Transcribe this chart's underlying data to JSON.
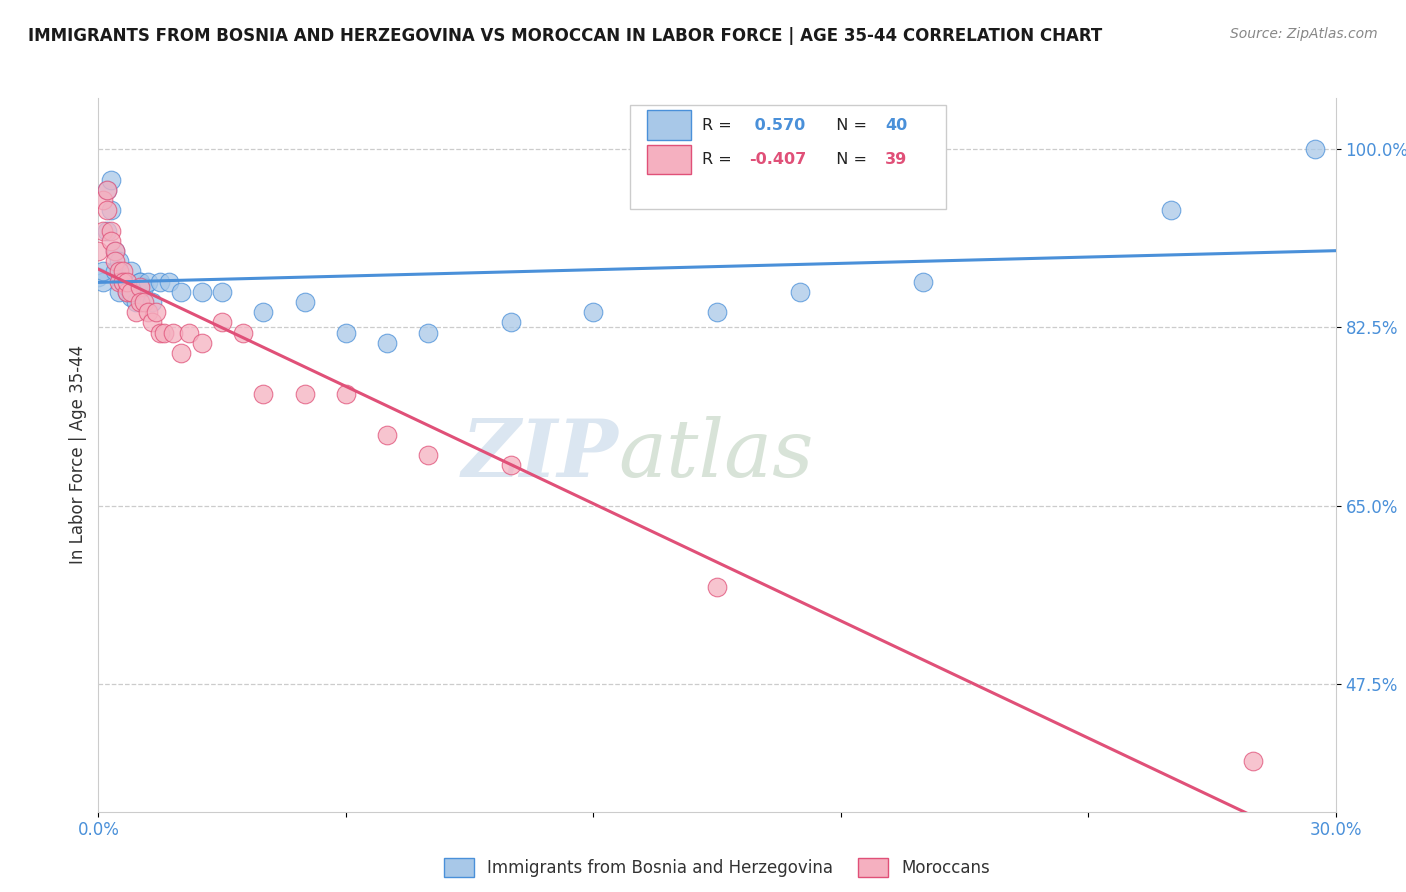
{
  "title": "IMMIGRANTS FROM BOSNIA AND HERZEGOVINA VS MOROCCAN IN LABOR FORCE | AGE 35-44 CORRELATION CHART",
  "source": "Source: ZipAtlas.com",
  "ylabel": "In Labor Force | Age 35-44",
  "xlim": [
    0.0,
    0.3
  ],
  "ylim": [
    0.35,
    1.05
  ],
  "ytick_positions": [
    0.475,
    0.65,
    0.825,
    1.0
  ],
  "ytick_labels": [
    "47.5%",
    "65.0%",
    "82.5%",
    "100.0%"
  ],
  "r_bosnia": 0.57,
  "n_bosnia": 40,
  "r_moroccan": -0.407,
  "n_moroccan": 39,
  "color_bosnia": "#a8c8e8",
  "color_moroccan": "#f5b0c0",
  "line_color_bosnia": "#4a90d9",
  "line_color_moroccan": "#e05078",
  "watermark_zip": "ZIP",
  "watermark_atlas": "atlas",
  "bosnia_x": [
    0.0,
    0.001,
    0.001,
    0.002,
    0.002,
    0.003,
    0.003,
    0.004,
    0.004,
    0.005,
    0.005,
    0.006,
    0.006,
    0.007,
    0.007,
    0.008,
    0.008,
    0.009,
    0.01,
    0.01,
    0.011,
    0.012,
    0.013,
    0.015,
    0.017,
    0.02,
    0.025,
    0.03,
    0.04,
    0.05,
    0.06,
    0.07,
    0.08,
    0.1,
    0.12,
    0.15,
    0.17,
    0.2,
    0.26,
    0.295
  ],
  "bosnia_y": [
    0.875,
    0.87,
    0.88,
    0.92,
    0.96,
    0.97,
    0.94,
    0.88,
    0.9,
    0.86,
    0.89,
    0.87,
    0.87,
    0.86,
    0.865,
    0.855,
    0.88,
    0.85,
    0.87,
    0.87,
    0.865,
    0.87,
    0.85,
    0.87,
    0.87,
    0.86,
    0.86,
    0.86,
    0.84,
    0.85,
    0.82,
    0.81,
    0.82,
    0.83,
    0.84,
    0.84,
    0.86,
    0.87,
    0.94,
    1.0
  ],
  "moroccan_x": [
    0.0,
    0.001,
    0.001,
    0.002,
    0.002,
    0.003,
    0.003,
    0.004,
    0.004,
    0.005,
    0.005,
    0.006,
    0.006,
    0.007,
    0.007,
    0.008,
    0.009,
    0.01,
    0.01,
    0.011,
    0.012,
    0.013,
    0.014,
    0.015,
    0.016,
    0.018,
    0.02,
    0.022,
    0.025,
    0.03,
    0.035,
    0.04,
    0.05,
    0.06,
    0.07,
    0.08,
    0.1,
    0.15,
    0.28
  ],
  "moroccan_y": [
    0.9,
    0.95,
    0.92,
    0.94,
    0.96,
    0.92,
    0.91,
    0.9,
    0.89,
    0.88,
    0.87,
    0.88,
    0.87,
    0.86,
    0.87,
    0.86,
    0.84,
    0.865,
    0.85,
    0.85,
    0.84,
    0.83,
    0.84,
    0.82,
    0.82,
    0.82,
    0.8,
    0.82,
    0.81,
    0.83,
    0.82,
    0.76,
    0.76,
    0.76,
    0.72,
    0.7,
    0.69,
    0.57,
    0.4
  ]
}
